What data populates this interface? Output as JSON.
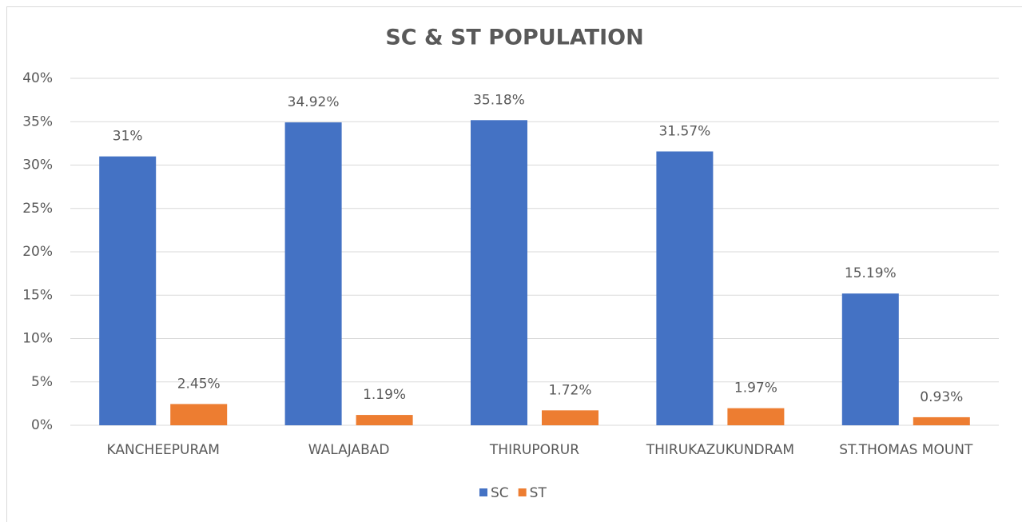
{
  "chart_data": {
    "type": "bar",
    "title": "SC & ST POPULATION",
    "categories": [
      "KANCHEEPURAM",
      "WALAJABAD",
      "THIRUPORUR",
      "THIRUKAZUKUNDRAM",
      "ST.THOMAS MOUNT"
    ],
    "series": [
      {
        "name": "SC",
        "color": "#4472c4",
        "values": [
          31,
          34.92,
          35.18,
          31.57,
          15.19
        ],
        "value_labels": [
          "31%",
          "34.92%",
          "35.18%",
          "31.57%",
          "15.19%"
        ]
      },
      {
        "name": "ST",
        "color": "#ed7d31",
        "values": [
          2.45,
          1.19,
          1.72,
          1.97,
          0.93
        ],
        "value_labels": [
          "2.45%",
          "1.19%",
          "1.72%",
          "1.97%",
          "0.93%"
        ]
      }
    ],
    "ylim": [
      0,
      40
    ],
    "yticks": [
      {
        "value": 0,
        "label": "0%"
      },
      {
        "value": 5,
        "label": "5%"
      },
      {
        "value": 10,
        "label": "10%"
      },
      {
        "value": 15,
        "label": "15%"
      },
      {
        "value": 20,
        "label": "20%"
      },
      {
        "value": 25,
        "label": "25%"
      },
      {
        "value": 30,
        "label": "30%"
      },
      {
        "value": 35,
        "label": "35%"
      },
      {
        "value": 40,
        "label": "40%"
      }
    ],
    "grid": true,
    "legend": "bottom"
  }
}
